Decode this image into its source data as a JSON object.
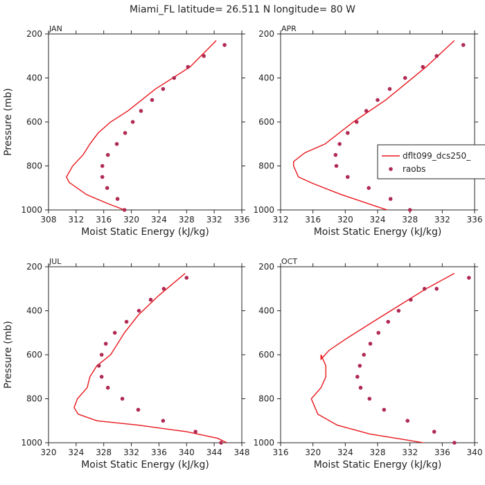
{
  "title": "Miami_FL   latitude= 26.511 N longitude= 80 W",
  "colors": {
    "line": "#e8141a",
    "points": "#b02a52",
    "axis": "#222222"
  },
  "chart_data": [
    {
      "type": "line",
      "panel": "JAN",
      "xlabel": "Moist Static Energy (kJ/kg)",
      "ylabel": "Pressure (mb)",
      "xlim": [
        308,
        336
      ],
      "xticks": [
        308,
        312,
        316,
        320,
        324,
        328,
        332,
        336
      ],
      "ylim": [
        1000,
        200
      ],
      "yticks": [
        200,
        400,
        600,
        800,
        1000
      ],
      "series": [
        {
          "name": "dflt099_dcs250_",
          "kind": "line",
          "x": [
            319.0,
            316.5,
            313.5,
            311.0,
            310.6,
            311.5,
            313.0,
            314.0,
            315.2,
            317.0,
            319.5,
            323.5,
            328.5,
            332.3
          ],
          "y": [
            1000,
            970,
            930,
            875,
            850,
            800,
            750,
            700,
            650,
            600,
            550,
            450,
            350,
            230
          ]
        },
        {
          "name": "raobs",
          "kind": "scatter",
          "x": [
            319.0,
            318.0,
            316.5,
            315.8,
            315.8,
            316.6,
            317.9,
            319.1,
            320.2,
            321.4,
            323.0,
            324.6,
            326.2,
            328.2,
            330.5,
            333.5
          ],
          "y": [
            1000,
            950,
            900,
            850,
            800,
            750,
            700,
            650,
            600,
            550,
            500,
            450,
            400,
            350,
            300,
            250
          ]
        }
      ]
    },
    {
      "type": "line",
      "panel": "APR",
      "xlabel": "Moist Static Energy (kJ/kg)",
      "ylabel": "",
      "xlim": [
        312,
        336
      ],
      "xticks": [
        312,
        316,
        320,
        324,
        328,
        332,
        336
      ],
      "ylim": [
        1000,
        200
      ],
      "yticks": [
        200,
        400,
        600,
        800,
        1000
      ],
      "legend": {
        "position": "right-middle"
      },
      "series": [
        {
          "name": "dflt099_dcs250_",
          "kind": "line",
          "x": [
            326.0,
            323.5,
            319.5,
            316.0,
            314.2,
            313.6,
            313.6,
            315.0,
            317.5,
            321.0,
            325.0,
            330.0,
            333.5
          ],
          "y": [
            1010,
            980,
            930,
            880,
            850,
            800,
            780,
            740,
            700,
            600,
            500,
            350,
            230
          ]
        },
        {
          "name": "raobs",
          "kind": "scatter",
          "x": [
            328.0,
            325.6,
            322.9,
            320.3,
            318.9,
            318.8,
            319.3,
            320.3,
            321.4,
            322.6,
            324.0,
            325.5,
            327.4,
            329.6,
            331.3,
            334.6
          ],
          "y": [
            1000,
            950,
            900,
            850,
            800,
            750,
            700,
            650,
            600,
            550,
            500,
            450,
            400,
            350,
            300,
            250
          ]
        }
      ]
    },
    {
      "type": "line",
      "panel": "JUL",
      "xlabel": "Moist Static Energy (kJ/kg)",
      "ylabel": "Pressure (mb)",
      "xlim": [
        320,
        348
      ],
      "xticks": [
        320,
        324,
        328,
        332,
        336,
        340,
        344,
        348
      ],
      "ylim": [
        1000,
        200
      ],
      "yticks": [
        200,
        400,
        600,
        800,
        1000
      ],
      "series": [
        {
          "name": "dflt099_dcs250_",
          "kind": "line",
          "x": [
            346.5,
            344.5,
            340.0,
            333.0,
            327.0,
            324.3,
            323.7,
            324.2,
            325.6,
            326.0,
            327.0,
            329.0,
            331.0,
            333.0,
            336.0,
            339.8
          ],
          "y": [
            1010,
            980,
            950,
            920,
            900,
            870,
            840,
            800,
            750,
            700,
            650,
            600,
            500,
            420,
            330,
            230
          ]
        },
        {
          "name": "raobs",
          "kind": "scatter",
          "x": [
            345.0,
            341.3,
            336.6,
            333.0,
            330.7,
            328.6,
            327.7,
            327.3,
            327.7,
            328.3,
            329.6,
            331.3,
            333.1,
            334.8,
            336.7,
            340.0
          ],
          "y": [
            1000,
            950,
            900,
            850,
            800,
            750,
            700,
            650,
            600,
            550,
            500,
            450,
            400,
            350,
            300,
            250
          ]
        }
      ]
    },
    {
      "type": "line",
      "panel": "OCT",
      "xlabel": "Moist Static Energy (kJ/kg)",
      "ylabel": "",
      "xlim": [
        316,
        340
      ],
      "xticks": [
        316,
        320,
        324,
        328,
        332,
        336,
        340
      ],
      "ylim": [
        1000,
        200
      ],
      "yticks": [
        200,
        400,
        600,
        800,
        1000
      ],
      "series": [
        {
          "name": "dflt099_dcs250_",
          "kind": "line",
          "x": [
            335.2,
            332.0,
            327.0,
            323.0,
            320.6,
            319.8,
            321.0,
            321.6,
            321.6,
            321.0,
            321.0,
            322.0,
            324.0,
            327.0,
            330.5,
            334.0,
            337.5
          ],
          "y": [
            1010,
            990,
            960,
            920,
            870,
            800,
            750,
            700,
            650,
            600,
            620,
            580,
            530,
            460,
            380,
            300,
            230
          ]
        },
        {
          "name": "raobs",
          "kind": "scatter",
          "x": [
            337.5,
            335.0,
            331.7,
            328.8,
            327.0,
            325.9,
            325.5,
            325.8,
            326.3,
            327.1,
            328.1,
            329.3,
            330.6,
            332.1,
            333.8,
            335.3,
            339.3
          ],
          "y": [
            1000,
            950,
            900,
            850,
            800,
            750,
            700,
            650,
            600,
            550,
            500,
            450,
            400,
            350,
            300,
            300,
            250
          ]
        }
      ]
    }
  ]
}
